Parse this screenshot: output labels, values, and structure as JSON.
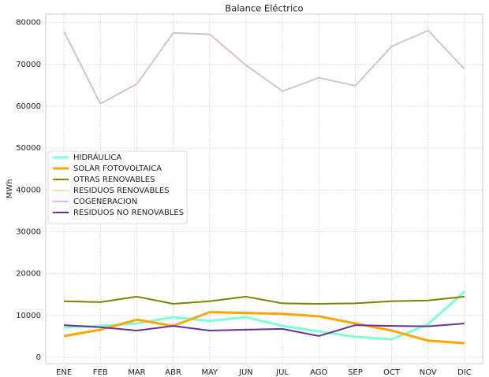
{
  "chart_data": {
    "type": "line",
    "title": "Balance Eléctrico",
    "y_label": "MWh",
    "categories": [
      "ENE",
      "FEB",
      "MAR",
      "ABR",
      "MAY",
      "JUN",
      "JUL",
      "AGO",
      "SEP",
      "OCT",
      "NOV",
      "DIC"
    ],
    "series": [
      {
        "name": "HIDRÁULICA",
        "color": "#7fffd4",
        "linewidth": 3,
        "values": [
          7200,
          7500,
          8100,
          9600,
          8700,
          9600,
          7500,
          6200,
          4900,
          4300,
          7900,
          15700
        ]
      },
      {
        "name": "SOLAR FOTOVOLTAICA",
        "color": "#ffa500",
        "linewidth": 3,
        "values": [
          5100,
          6600,
          9000,
          7500,
          10800,
          10600,
          10400,
          9800,
          8100,
          6400,
          4000,
          3400
        ]
      },
      {
        "name": "OTRAS RENOVABLES",
        "color": "#808000",
        "linewidth": 2,
        "values": [
          13400,
          13200,
          14500,
          12800,
          13400,
          14500,
          12900,
          12800,
          12900,
          13400,
          13600,
          14500
        ]
      },
      {
        "name": "RESIDUOS RENOVABLES",
        "color": "#f5deb3",
        "linewidth": 2,
        "values": [
          7700,
          7200,
          6400,
          7500,
          6400,
          6600,
          6800,
          5100,
          7700,
          7500,
          7400,
          8100
        ]
      },
      {
        "name": "COGENERACION",
        "color": "#d8bfd8",
        "linewidth": 2,
        "values": [
          77900,
          60600,
          65300,
          77500,
          77200,
          69800,
          63600,
          66800,
          64900,
          74300,
          78100,
          68900
        ]
      },
      {
        "name": "RESIDUOS NO RENOVABLES",
        "color": "#663399",
        "linewidth": 2,
        "values": [
          7700,
          7200,
          6400,
          7500,
          6400,
          6600,
          6800,
          5100,
          7700,
          7500,
          7400,
          8100
        ]
      }
    ],
    "ylim": [
      -1500,
      82000
    ],
    "yticks": [
      0,
      10000,
      20000,
      30000,
      40000,
      50000,
      60000,
      70000,
      80000
    ],
    "grid": true,
    "legend": "center left"
  }
}
